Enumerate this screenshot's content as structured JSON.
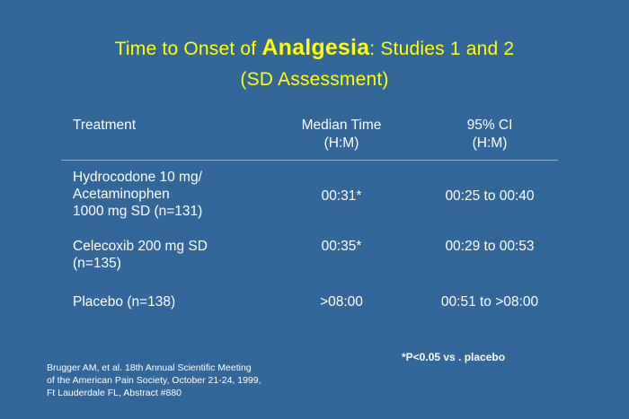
{
  "title": {
    "part1": "Time to Onset of ",
    "emphasis": "Analgesia",
    "part2": ": Studies 1 and 2",
    "subtitle": "(SD Assessment)",
    "color": "#ffff00"
  },
  "background": "#336699",
  "table": {
    "headers": {
      "treatment": "Treatment",
      "median_line1": "Median Time",
      "median_line2": "(H:M)",
      "ci_line1": "95% CI",
      "ci_line2": "(H:M)"
    },
    "rows": [
      {
        "treatment_lines": [
          "Hydrocodone 10 mg/",
          "Acetaminophen",
          "1000 mg SD (n=131)"
        ],
        "median": "00:31*",
        "ci": "00:25 to 00:40"
      },
      {
        "treatment_lines": [
          "Celecoxib 200 mg SD",
          "(n=135)"
        ],
        "median": "00:35*",
        "ci": "00:29 to 00:53"
      },
      {
        "treatment_lines": [
          "Placebo (n=138)"
        ],
        "median": ">08:00",
        "ci": "00:51 to >08:00"
      }
    ]
  },
  "citation": {
    "line1": "Brugger    AM, et al. 18th Annual Scientific Meeting",
    "line2": "of the American Pain Society, October 21-24, 1999,",
    "line3": "Ft Lauderdale FL, Abstract #880"
  },
  "footnote": "*P<0.05   vs . placebo"
}
